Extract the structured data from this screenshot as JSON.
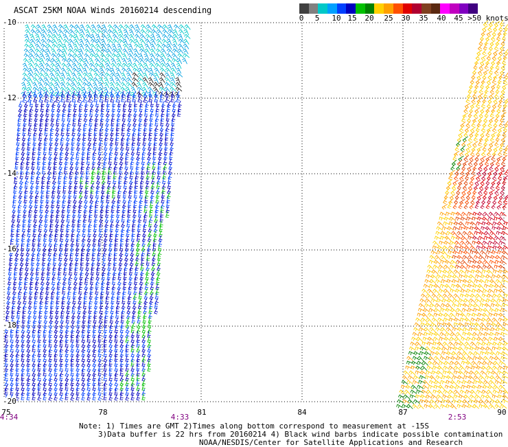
{
  "title": "ASCAT 25KM NOAA Winds 20160214 descending",
  "colorbar": {
    "colors": [
      "#404040",
      "#808080",
      "#00c8c8",
      "#00a0ff",
      "#0040ff",
      "#0000c0",
      "#00c000",
      "#008000",
      "#ffd000",
      "#ffa000",
      "#ff5000",
      "#e00000",
      "#b00030",
      "#804020",
      "#5a2810",
      "#ff00ff",
      "#c000c0",
      "#8000c0",
      "#400080"
    ],
    "tick_labels": [
      "0",
      "5",
      "10",
      "15",
      "20",
      "25",
      "30",
      "35",
      "40",
      "45",
      ">50 knots"
    ]
  },
  "axes": {
    "lat_labels": [
      "-10",
      "-12",
      "-14",
      "-16",
      "-18",
      "-20"
    ],
    "lon_labels": [
      "75",
      "78",
      "81",
      "84",
      "87",
      "90"
    ]
  },
  "times": {
    "left": "4:34",
    "mid": "4:33",
    "right": "2:53"
  },
  "notes": {
    "line1": "Note: 1) Times are GMT 2)Times along bottom correspond to measurement at -15S",
    "line2": "3)Data buffer is 22 hrs from 20160214 4) Black wind barbs indicate possible contamination",
    "line3": "NOAA/NESDIS/Center for Satellite Applications and Research"
  }
}
